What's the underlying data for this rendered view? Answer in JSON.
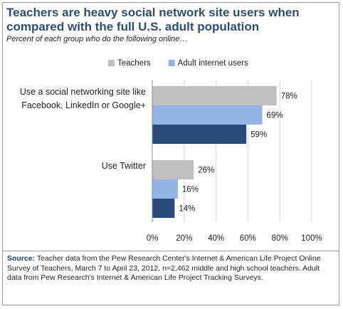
{
  "chart_data": {
    "type": "bar",
    "orientation": "horizontal",
    "title": "Teachers are heavy social network site users when compared with the full U.S. adult population",
    "subtitle": "Percent of each group who do the following online…",
    "categories": [
      "Use a social networking site like Facebook, LinkedIn or Google+",
      "Use Twitter"
    ],
    "category_lines": [
      [
        "Use a social networking site like",
        "Facebook, LinkedIn or Google+"
      ],
      [
        "Use Twitter"
      ]
    ],
    "series": [
      {
        "name": "Teachers",
        "values": [
          78,
          26
        ],
        "color": "#c0c0c0"
      },
      {
        "name": "Adult internet users",
        "values": [
          69,
          16
        ],
        "color": "#92b5e3"
      },
      {
        "name": "",
        "values": [
          59,
          14
        ],
        "color": "#274a7a"
      }
    ],
    "value_suffix": "%",
    "xlim": [
      0,
      100
    ],
    "xticks": [
      "0%",
      "20%",
      "40%",
      "60%",
      "80%",
      "100%"
    ],
    "grid": true,
    "legend_position": "top"
  },
  "source": {
    "label": "Source:",
    "text": "Teacher data from the Pew Research Center's Internet & American Life Project Online Survey of Teachers, March 7 to April 23, 2012, n=2,462 middle and high school teachers.  Adult data from Pew Research's Internet & American Life Project Tracking Surveys."
  }
}
